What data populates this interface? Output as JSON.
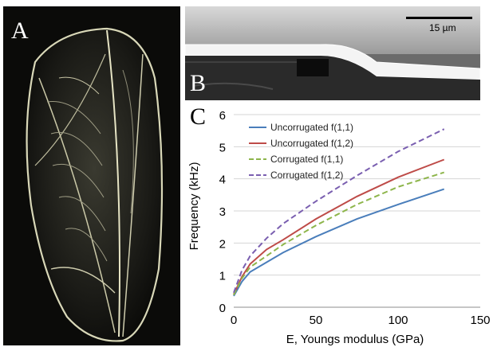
{
  "panels": {
    "a": {
      "letter": "A"
    },
    "b": {
      "letter": "B",
      "scale_label": "15 µm"
    },
    "c": {
      "letter": "C"
    }
  },
  "chart_data": {
    "type": "line",
    "xlabel": "E, Youngs modulus (GPa)",
    "ylabel": "Frequency (kHz)",
    "xlim": [
      0,
      150
    ],
    "ylim": [
      0,
      6
    ],
    "xticks": [
      0,
      50,
      100,
      150
    ],
    "yticks": [
      0,
      1,
      2,
      3,
      4,
      5,
      6
    ],
    "grid": "horizontal",
    "legend": "top-left",
    "series": [
      {
        "name": "Uncorrugated f(1,1)",
        "color": "#4a7ebb",
        "dash": "solid",
        "x": [
          0,
          5,
          10,
          20,
          30,
          50,
          75,
          100,
          128
        ],
        "y": [
          0.35,
          0.8,
          1.1,
          1.4,
          1.7,
          2.2,
          2.75,
          3.2,
          3.68
        ]
      },
      {
        "name": "Uncorrugated f(1,2)",
        "color": "#be4b48",
        "dash": "solid",
        "x": [
          0,
          5,
          10,
          20,
          30,
          50,
          75,
          100,
          128
        ],
        "y": [
          0.4,
          0.95,
          1.35,
          1.8,
          2.1,
          2.75,
          3.45,
          4.05,
          4.6
        ]
      },
      {
        "name": "Corrugated f(1,1)",
        "color": "#8db54a",
        "dash": "dashed",
        "x": [
          0,
          5,
          10,
          20,
          30,
          50,
          75,
          100,
          128
        ],
        "y": [
          0.38,
          0.9,
          1.25,
          1.6,
          1.95,
          2.55,
          3.2,
          3.75,
          4.2
        ]
      },
      {
        "name": "Corrugated f(1,2)",
        "color": "#7a5fb0",
        "dash": "dashed",
        "x": [
          0,
          5,
          10,
          20,
          30,
          50,
          75,
          100,
          128
        ],
        "y": [
          0.45,
          1.15,
          1.6,
          2.15,
          2.6,
          3.3,
          4.1,
          4.85,
          5.55
        ]
      }
    ]
  }
}
